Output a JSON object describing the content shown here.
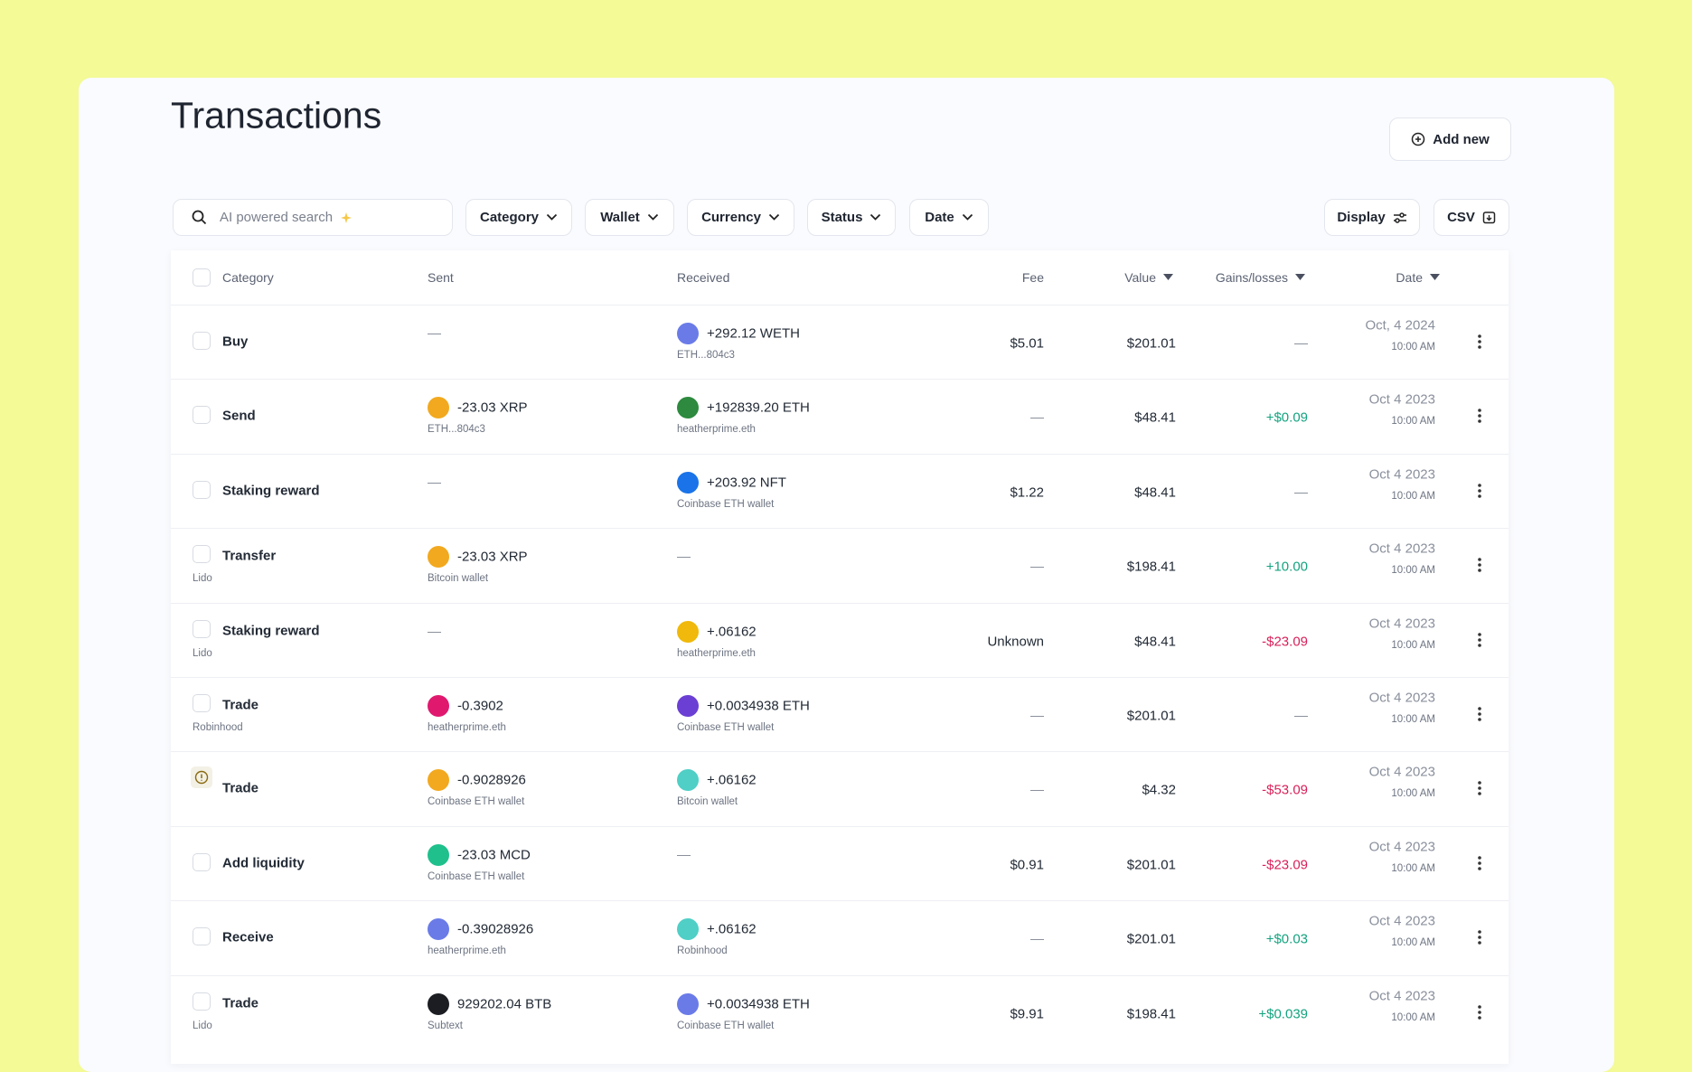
{
  "header": {
    "title": "Transactions",
    "add_button": "Add new"
  },
  "filters": {
    "search": "AI powered search",
    "dropdowns": [
      "Category",
      "Wallet",
      "Currency",
      "Status",
      "Date"
    ],
    "display": "Display",
    "csv": "CSV"
  },
  "table": {
    "columns": [
      "Category",
      "Sent",
      "Received",
      "Fee",
      "Value",
      "Gains/losses",
      "Date"
    ],
    "rows": [
      {
        "category": "Buy",
        "sent": {
          "amount": "—"
        },
        "received": {
          "amount": "+292.12 WETH",
          "sub": "ETH...804c3"
        },
        "fee": "$5.01",
        "value": "$201.01",
        "gains": "—",
        "date": "Oct, 4 2024",
        "time": "10:00 AM"
      },
      {
        "category": "Send",
        "sent": {
          "amount": "-23.03 XRP",
          "sub": "ETH...804c3"
        },
        "received": {
          "amount": "+192839.20 ETH",
          "sub": "heatherprime.eth"
        },
        "fee": "—",
        "value": "$48.41",
        "gains": "+$0.09",
        "date": "Oct 4 2023",
        "time": "10:00 AM"
      },
      {
        "category": "Staking reward",
        "sent": {
          "amount": "—"
        },
        "received": {
          "amount": "+203.92 NFT",
          "sub": "Coinbase ETH wallet"
        },
        "fee": "$1.22",
        "value": "$48.41",
        "gains": "—",
        "date": "Oct 4 2023",
        "time": "10:00 AM"
      },
      {
        "category": "Transfer",
        "category_sub": "Lido",
        "sent": {
          "amount": "-23.03 XRP",
          "sub": "Bitcoin wallet"
        },
        "received": {
          "amount": "—"
        },
        "fee": "—",
        "value": "$198.41",
        "gains": "+10.00",
        "date": "Oct 4 2023",
        "time": "10:00 AM"
      },
      {
        "category": "Staking reward",
        "category_sub": "Lido",
        "sent": {
          "amount": "—"
        },
        "received": {
          "amount": "+.06162",
          "sub": "heatherprime.eth"
        },
        "fee": "Unknown",
        "value": "$48.41",
        "gains": "-$23.09",
        "date": "Oct 4 2023",
        "time": "10:00 AM"
      },
      {
        "category": "Trade",
        "category_sub": "Robinhood",
        "sent": {
          "amount": "-0.3902",
          "sub": "heatherprime.eth"
        },
        "received": {
          "amount": "+0.0034938 ETH",
          "sub": "Coinbase ETH wallet"
        },
        "fee": "—",
        "value": "$201.01",
        "gains": "—",
        "date": "Oct 4 2023",
        "time": "10:00 AM"
      },
      {
        "category": "Trade",
        "sent": {
          "amount": "-0.9028926",
          "sub": "Coinbase ETH wallet"
        },
        "received": {
          "amount": "+.06162",
          "sub": "Bitcoin wallet"
        },
        "fee": "—",
        "value": "$4.32",
        "gains": "-$53.09",
        "date": "Oct 4 2023",
        "time": "10:00 AM"
      },
      {
        "category": "Add liquidity",
        "sent": {
          "amount": "-23.03 MCD",
          "sub": "Coinbase ETH wallet"
        },
        "received": {
          "amount": "—"
        },
        "fee": "$0.91",
        "value": "$201.01",
        "gains": "-$23.09",
        "date": "Oct 4 2023",
        "time": "10:00 AM"
      },
      {
        "category": "Receive",
        "sent": {
          "amount": "-0.39028926",
          "sub": "heatherprime.eth"
        },
        "received": {
          "amount": "+.06162",
          "sub": "Robinhood"
        },
        "fee": "—",
        "value": "$201.01",
        "gains": "+$0.03",
        "date": "Oct 4 2023",
        "time": "10:00 AM"
      },
      {
        "category": "Trade",
        "category_sub": "Lido",
        "sent": {
          "amount": "929202.04 BTB",
          "sub": "Subtext"
        },
        "received": {
          "amount": "+0.0034938 ETH",
          "sub": "Coinbase ETH wallet"
        },
        "fee": "$9.91",
        "value": "$198.41",
        "gains": "+$0.039",
        "date": "Oct 4 2023",
        "time": "10:00 AM"
      }
    ]
  }
}
